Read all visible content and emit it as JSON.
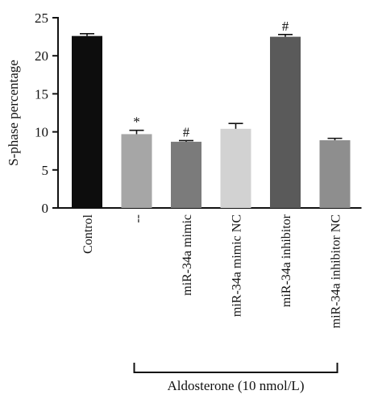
{
  "chart_data": {
    "type": "bar",
    "ylabel": "S-phase percentage",
    "xlabel": "",
    "ylim": [
      0,
      25
    ],
    "yticks": [
      0,
      5,
      10,
      15,
      20,
      25
    ],
    "categories": [
      "Control",
      "--",
      "miR-34a mimic",
      "miR-34a mimic NC",
      "miR-34a inhibitor",
      "miR-34a inhibitor NC"
    ],
    "values": [
      22.6,
      9.7,
      8.7,
      10.4,
      22.5,
      8.9
    ],
    "errors": [
      0.3,
      0.5,
      0.15,
      0.7,
      0.3,
      0.25
    ],
    "annotations": [
      "",
      "*",
      "#",
      "",
      "#",
      ""
    ],
    "colors": [
      "#0d0d0d",
      "#a6a6a6",
      "#7b7b7b",
      "#d2d2d2",
      "#5a5a5a",
      "#8e8e8e"
    ],
    "group_bracket": {
      "label": "Aldosterone (10 nmol/L)",
      "from_index": 1,
      "to_index": 5
    }
  }
}
